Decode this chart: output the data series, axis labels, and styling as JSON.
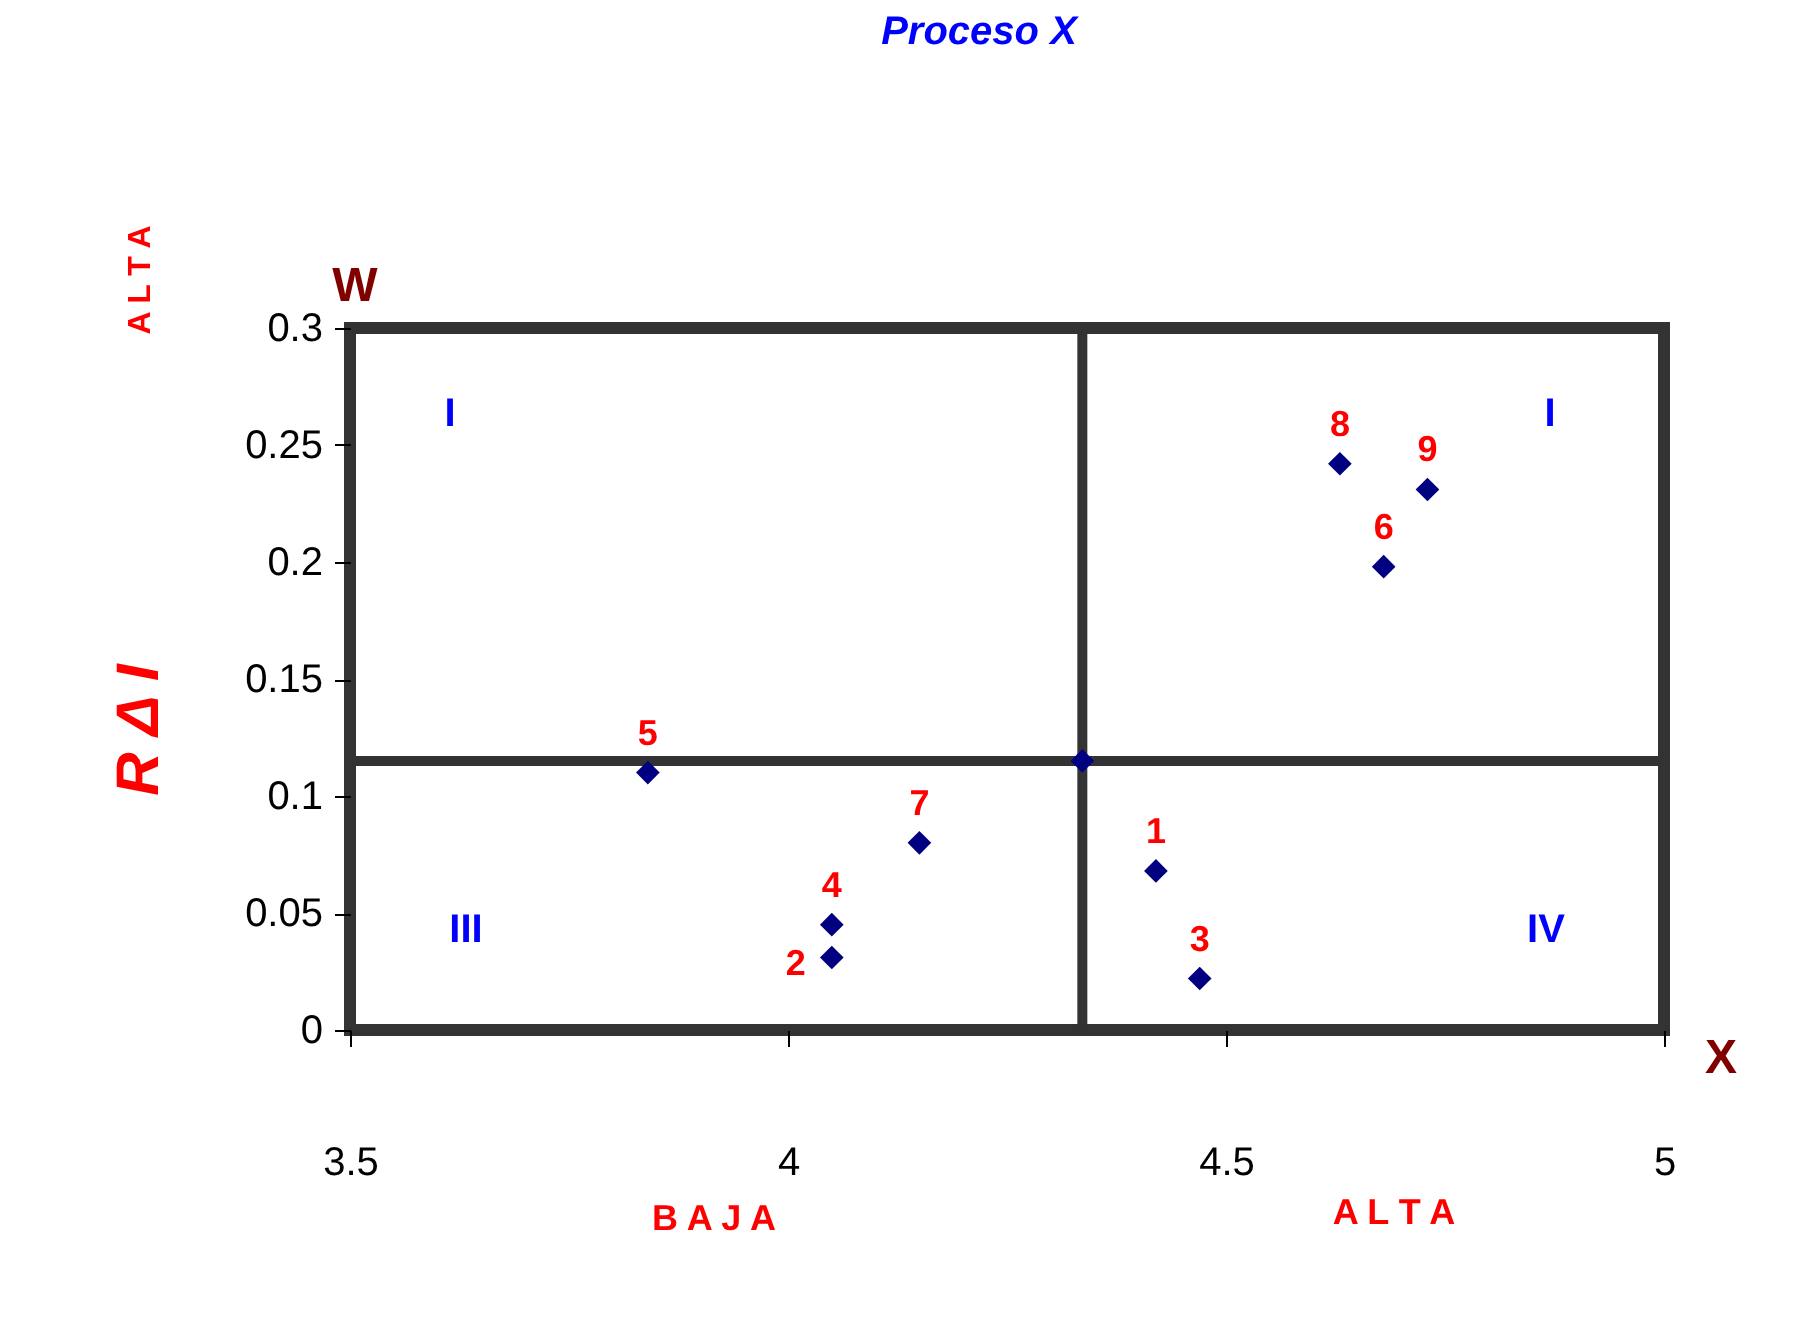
{
  "chart_data": {
    "type": "scatter",
    "title": "Proceso X",
    "xlabel": "X",
    "ylabel": "W",
    "x": [
      4.42,
      4.05,
      4.47,
      4.05,
      3.84,
      4.68,
      4.15,
      4.63,
      4.73,
      4.336
    ],
    "series": [
      {
        "color": "#000080",
        "values": [
          0.068,
          0.031,
          0.022,
          0.045,
          0.11,
          0.198,
          0.08,
          0.242,
          0.231,
          0.115
        ]
      }
    ],
    "marker": "diamond",
    "grid": false,
    "xlim": [
      3.5,
      5
    ],
    "xticks": [
      3.5,
      4,
      4.5,
      5
    ],
    "ylim": [
      0,
      0.3
    ],
    "yticks": [
      0,
      0.05,
      0.1,
      0.15,
      0.2,
      0.25,
      0.3
    ],
    "ref_lines": [
      {
        "axis": "x",
        "value": 4.336,
        "color": "#333333"
      },
      {
        "axis": "y",
        "value": 0.115,
        "color": "#333333"
      }
    ],
    "annotations": [
      "A L T A",
      "R Δ I",
      "I",
      "I",
      "III",
      "IV",
      "B A J A",
      "A L T A",
      {
        "text": "1",
        "x": 4.42,
        "y": 0.068
      },
      {
        "text": "2",
        "x": 4.05,
        "y": 0.031
      },
      {
        "text": "3",
        "x": 4.47,
        "y": 0.022
      },
      {
        "text": "4",
        "x": 4.05,
        "y": 0.045
      },
      {
        "text": "5",
        "x": 3.84,
        "y": 0.11
      },
      {
        "text": "6",
        "x": 4.68,
        "y": 0.198
      },
      {
        "text": "7",
        "x": 4.15,
        "y": 0.08
      },
      {
        "text": "8",
        "x": 4.63,
        "y": 0.242
      },
      {
        "text": "9",
        "x": 4.73,
        "y": 0.231
      }
    ]
  }
}
